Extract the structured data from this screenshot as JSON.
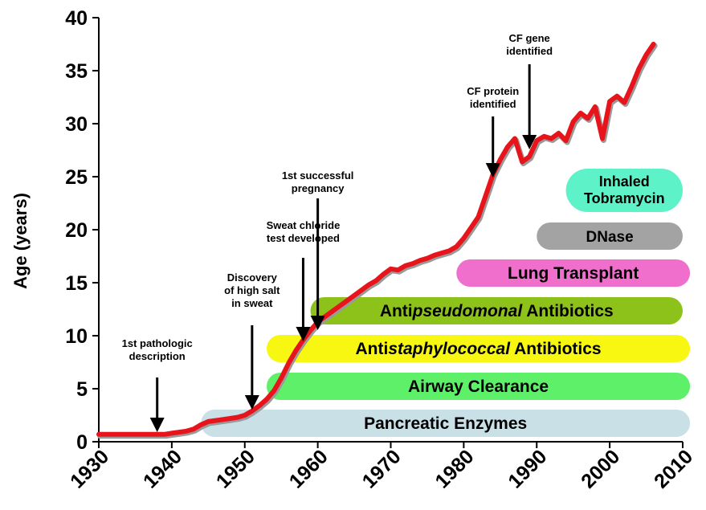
{
  "chart_data": {
    "type": "line",
    "ylabel": "Age (years)",
    "xlim": [
      1930,
      2010
    ],
    "ylim": [
      0,
      40
    ],
    "x_ticks": [
      "1930",
      "1940",
      "1950",
      "1960",
      "1970",
      "1980",
      "1990",
      "2000",
      "2010"
    ],
    "y_ticks": [
      "0",
      "5",
      "10",
      "15",
      "20",
      "25",
      "30",
      "35",
      "40"
    ],
    "series": [
      {
        "color": "#e8141b",
        "x": [
          1930,
          1933,
          1936,
          1939,
          1940,
          1941,
          1942,
          1943,
          1944,
          1945,
          1946,
          1947,
          1948,
          1949,
          1950,
          1951,
          1952,
          1953,
          1954,
          1955,
          1956,
          1957,
          1958,
          1959,
          1960,
          1961,
          1962,
          1963,
          1964,
          1965,
          1966,
          1967,
          1968,
          1969,
          1970,
          1971,
          1972,
          1973,
          1974,
          1975,
          1976,
          1977,
          1978,
          1979,
          1980,
          1981,
          1982,
          1983,
          1984,
          1985,
          1986,
          1987,
          1988,
          1989,
          1990,
          1991,
          1992,
          1993,
          1994,
          1995,
          1996,
          1997,
          1998,
          1999,
          2000,
          2001,
          2002,
          2003,
          2004,
          2005,
          2006
        ],
        "y": [
          0.7,
          0.7,
          0.7,
          0.7,
          0.8,
          0.9,
          1.0,
          1.2,
          1.6,
          1.9,
          2.0,
          2.1,
          2.2,
          2.3,
          2.5,
          2.9,
          3.4,
          4.0,
          4.8,
          6.0,
          7.4,
          8.6,
          9.6,
          10.5,
          11.3,
          11.8,
          12.3,
          12.8,
          13.3,
          13.8,
          14.3,
          14.8,
          15.2,
          15.8,
          16.3,
          16.2,
          16.6,
          16.8,
          17.1,
          17.3,
          17.6,
          17.8,
          18.0,
          18.4,
          19.2,
          20.2,
          21.2,
          23.2,
          25.2,
          26.6,
          27.8,
          28.6,
          26.4,
          26.9,
          28.4,
          28.8,
          28.6,
          29.1,
          28.4,
          30.2,
          31.0,
          30.5,
          31.6,
          28.6,
          32.1,
          32.6,
          32.0,
          33.5,
          35.2,
          36.5,
          37.5
        ]
      }
    ],
    "annotations": [
      {
        "lines": [
          "1st pathologic",
          "description"
        ],
        "x": 1938
      },
      {
        "lines": [
          "Discovery",
          "of high salt",
          "in sweat"
        ],
        "x": 1951
      },
      {
        "lines": [
          "Sweat chloride",
          "test developed"
        ],
        "x": 1958
      },
      {
        "lines": [
          "1st successful",
          "pregnancy"
        ],
        "x": 1960
      },
      {
        "lines": [
          "CF protein",
          "identified"
        ],
        "x": 1984
      },
      {
        "lines": [
          "CF gene",
          "identified"
        ],
        "x": 1989
      }
    ],
    "therapies": [
      {
        "prefix": "Pancreatic Enzymes",
        "italic": "",
        "suffix": "",
        "start": 1944,
        "end": 2011,
        "color": "#c8e0e6"
      },
      {
        "prefix": "Airway Clearance",
        "italic": "",
        "suffix": "",
        "start": 1953,
        "end": 2011,
        "color": "#5ff06a"
      },
      {
        "prefix": "Anti",
        "italic": "staphylococcal",
        "suffix": " Antibiotics",
        "start": 1953,
        "end": 2011,
        "color": "#f7f711"
      },
      {
        "prefix": "Anti",
        "italic": "pseudomonal",
        "suffix": " Antibiotics",
        "start": 1959,
        "end": 2010,
        "color": "#8dc21a"
      },
      {
        "prefix": "Lung Transplant",
        "italic": "",
        "suffix": "",
        "start": 1979,
        "end": 2011,
        "color": "#f06fcc"
      },
      {
        "prefix": "DNase",
        "italic": "",
        "suffix": "",
        "start": 1990,
        "end": 2010,
        "color": "#a3a3a3"
      },
      {
        "prefix": "Inhaled",
        "italic": "",
        "suffix": "",
        "line2": "Tobramycin",
        "start": 1994,
        "end": 2010,
        "color": "#5ef2c8"
      }
    ]
  }
}
